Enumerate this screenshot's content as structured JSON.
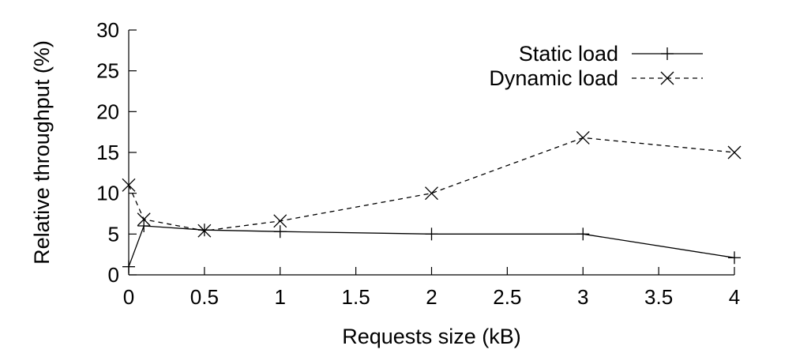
{
  "chart_data": {
    "type": "line",
    "title": "",
    "xlabel": "Requests size (kB)",
    "ylabel": "Relative throughput (%)",
    "xlim": [
      0,
      4
    ],
    "ylim": [
      0,
      30
    ],
    "xticks": [
      0,
      0.5,
      1,
      1.5,
      2,
      2.5,
      3,
      3.5,
      4
    ],
    "xtick_labels": [
      "0",
      "0.5",
      "1",
      "1.5",
      "2",
      "2.5",
      "3",
      "3.5",
      "4"
    ],
    "yticks": [
      0,
      5,
      10,
      15,
      20,
      25,
      30
    ],
    "ytick_labels": [
      "0",
      "5",
      "10",
      "15",
      "20",
      "25",
      "30"
    ],
    "grid": false,
    "legend_position": "top-right",
    "series": [
      {
        "name": "Static load",
        "style": "solid",
        "marker": "plus",
        "color": "#000000",
        "x": [
          0,
          0.1,
          0.5,
          1,
          2,
          3,
          4
        ],
        "values": [
          1,
          6,
          5.5,
          5.3,
          5,
          5,
          2.1
        ]
      },
      {
        "name": "Dynamic load",
        "style": "dashed",
        "marker": "cross",
        "color": "#000000",
        "x": [
          0,
          0.1,
          0.5,
          1,
          2,
          3,
          4
        ],
        "values": [
          11,
          6.8,
          5.4,
          6.6,
          10,
          16.8,
          15
        ]
      }
    ]
  }
}
